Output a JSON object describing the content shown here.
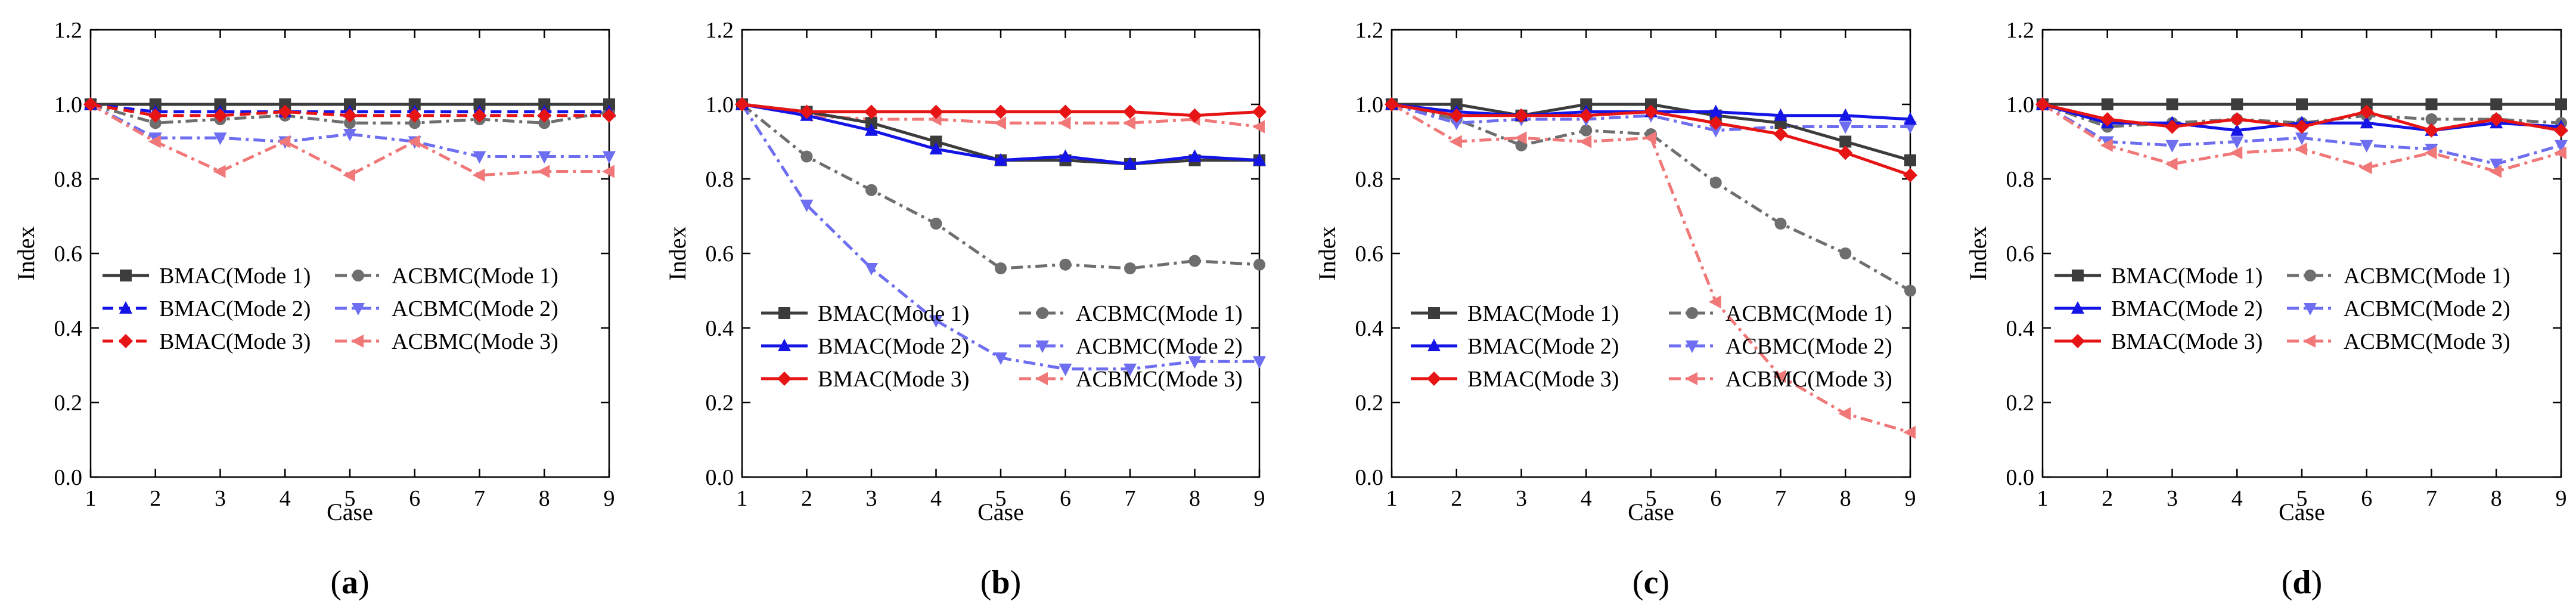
{
  "figure": {
    "xlabel": "Case",
    "ylabel": "Index",
    "panel_label_format": {
      "open": "(",
      "close": ")"
    }
  },
  "style": {
    "colors": {
      "Mode 1": "#3c3c3c",
      "Mode 2": "#1414e6",
      "Mode 3": "#e61414",
      "ACBMC Mode 1": "#6e6e6e",
      "ACBMC Mode 2": "#6e6ef0",
      "ACBMC Mode 3": "#f07878"
    }
  },
  "chart_data": [
    {
      "type": "line",
      "panel": "a",
      "xlabel": "Case",
      "ylabel": "Index",
      "xlim": [
        1,
        9
      ],
      "ylim": [
        0,
        1.2
      ],
      "x": [
        1,
        2,
        3,
        4,
        5,
        6,
        7,
        8,
        9
      ],
      "xticks": [
        "1",
        "2",
        "3",
        "4",
        "5",
        "6",
        "7",
        "8",
        "9"
      ],
      "yticks": [
        "0.0",
        "0.2",
        "0.4",
        "0.6",
        "0.8",
        "1.0",
        "1.2"
      ],
      "legend_position": "lower-center",
      "series": [
        {
          "name": "BMAC(Mode 1)",
          "values": [
            1.0,
            1.0,
            1.0,
            1.0,
            1.0,
            1.0,
            1.0,
            1.0,
            1.0
          ],
          "color": "Mode 1",
          "dash": "solid",
          "marker": "square"
        },
        {
          "name": "BMAC(Mode 2)",
          "values": [
            1.0,
            0.98,
            0.98,
            0.98,
            0.98,
            0.98,
            0.98,
            0.98,
            0.98
          ],
          "color": "Mode 2",
          "dash": "dash",
          "marker": "triangle-up"
        },
        {
          "name": "BMAC(Mode 3)",
          "values": [
            1.0,
            0.97,
            0.97,
            0.98,
            0.97,
            0.97,
            0.97,
            0.97,
            0.97
          ],
          "color": "Mode 3",
          "dash": "dash",
          "marker": "diamond"
        },
        {
          "name": "ACBMC(Mode 1)",
          "values": [
            1.0,
            0.95,
            0.96,
            0.97,
            0.95,
            0.95,
            0.96,
            0.95,
            0.98
          ],
          "color": "ACBMC Mode 1",
          "dash": "dashdot",
          "marker": "circle"
        },
        {
          "name": "ACBMC(Mode 2)",
          "values": [
            1.0,
            0.91,
            0.91,
            0.9,
            0.92,
            0.9,
            0.86,
            0.86,
            0.86
          ],
          "color": "ACBMC Mode 2",
          "dash": "dashdot",
          "marker": "triangle-down"
        },
        {
          "name": "ACBMC(Mode 3)",
          "values": [
            1.0,
            0.9,
            0.82,
            0.9,
            0.81,
            0.9,
            0.81,
            0.82,
            0.82
          ],
          "color": "ACBMC Mode 3",
          "dash": "dashdot",
          "marker": "triangle-left"
        }
      ]
    },
    {
      "type": "line",
      "panel": "b",
      "xlabel": "Case",
      "ylabel": "Index",
      "xlim": [
        1,
        9
      ],
      "ylim": [
        0,
        1.2
      ],
      "x": [
        1,
        2,
        3,
        4,
        5,
        6,
        7,
        8,
        9
      ],
      "xticks": [
        "1",
        "2",
        "3",
        "4",
        "5",
        "6",
        "7",
        "8",
        "9"
      ],
      "yticks": [
        "0.0",
        "0.2",
        "0.4",
        "0.6",
        "0.8",
        "1.0",
        "1.2"
      ],
      "legend_position": "lower-right",
      "series": [
        {
          "name": "BMAC(Mode 1)",
          "values": [
            1.0,
            0.98,
            0.95,
            0.9,
            0.85,
            0.85,
            0.84,
            0.85,
            0.85
          ],
          "color": "Mode 1",
          "dash": "solid",
          "marker": "square"
        },
        {
          "name": "BMAC(Mode 2)",
          "values": [
            1.0,
            0.97,
            0.93,
            0.88,
            0.85,
            0.86,
            0.84,
            0.86,
            0.85
          ],
          "color": "Mode 2",
          "dash": "solid",
          "marker": "triangle-up"
        },
        {
          "name": "BMAC(Mode 3)",
          "values": [
            1.0,
            0.98,
            0.98,
            0.98,
            0.98,
            0.98,
            0.98,
            0.97,
            0.98
          ],
          "color": "Mode 3",
          "dash": "solid",
          "marker": "diamond"
        },
        {
          "name": "ACBMC(Mode 1)",
          "values": [
            1.0,
            0.86,
            0.77,
            0.68,
            0.56,
            0.57,
            0.56,
            0.58,
            0.57
          ],
          "color": "ACBMC Mode 1",
          "dash": "dashdot",
          "marker": "circle"
        },
        {
          "name": "ACBMC(Mode 2)",
          "values": [
            1.0,
            0.73,
            0.56,
            0.42,
            0.32,
            0.29,
            0.29,
            0.31,
            0.31
          ],
          "color": "ACBMC Mode 2",
          "dash": "dashdot",
          "marker": "triangle-down"
        },
        {
          "name": "ACBMC(Mode 3)",
          "values": [
            1.0,
            0.97,
            0.96,
            0.96,
            0.95,
            0.95,
            0.95,
            0.96,
            0.94
          ],
          "color": "ACBMC Mode 3",
          "dash": "dashdot",
          "marker": "triangle-left"
        }
      ]
    },
    {
      "type": "line",
      "panel": "c",
      "xlabel": "Case",
      "ylabel": "Index",
      "xlim": [
        1,
        9
      ],
      "ylim": [
        0,
        1.2
      ],
      "x": [
        1,
        2,
        3,
        4,
        5,
        6,
        7,
        8,
        9
      ],
      "xticks": [
        "1",
        "2",
        "3",
        "4",
        "5",
        "6",
        "7",
        "8",
        "9"
      ],
      "yticks": [
        "0.0",
        "0.2",
        "0.4",
        "0.6",
        "0.8",
        "1.0",
        "1.2"
      ],
      "legend_position": "lower-right",
      "series": [
        {
          "name": "BMAC(Mode 1)",
          "values": [
            1.0,
            1.0,
            0.97,
            1.0,
            1.0,
            0.97,
            0.95,
            0.9,
            0.85
          ],
          "color": "Mode 1",
          "dash": "solid",
          "marker": "square"
        },
        {
          "name": "BMAC(Mode 2)",
          "values": [
            1.0,
            0.98,
            0.97,
            0.98,
            0.98,
            0.98,
            0.97,
            0.97,
            0.96
          ],
          "color": "Mode 2",
          "dash": "solid",
          "marker": "triangle-up"
        },
        {
          "name": "BMAC(Mode 3)",
          "values": [
            1.0,
            0.97,
            0.97,
            0.97,
            0.98,
            0.95,
            0.92,
            0.87,
            0.81
          ],
          "color": "Mode 3",
          "dash": "solid",
          "marker": "diamond"
        },
        {
          "name": "ACBMC(Mode 1)",
          "values": [
            1.0,
            0.96,
            0.89,
            0.93,
            0.92,
            0.79,
            0.68,
            0.6,
            0.5
          ],
          "color": "ACBMC Mode 1",
          "dash": "dashdot",
          "marker": "circle"
        },
        {
          "name": "ACBMC(Mode 2)",
          "values": [
            1.0,
            0.95,
            0.96,
            0.96,
            0.97,
            0.93,
            0.94,
            0.94,
            0.94
          ],
          "color": "ACBMC Mode 2",
          "dash": "dashdot",
          "marker": "triangle-down"
        },
        {
          "name": "ACBMC(Mode 3)",
          "values": [
            1.0,
            0.9,
            0.91,
            0.9,
            0.91,
            0.47,
            0.27,
            0.17,
            0.12
          ],
          "color": "ACBMC Mode 3",
          "dash": "dashdot",
          "marker": "triangle-left"
        }
      ]
    },
    {
      "type": "line",
      "panel": "d",
      "xlabel": "Case",
      "ylabel": "Index",
      "xlim": [
        1,
        9
      ],
      "ylim": [
        0,
        1.2
      ],
      "x": [
        1,
        2,
        3,
        4,
        5,
        6,
        7,
        8,
        9
      ],
      "xticks": [
        "1",
        "2",
        "3",
        "4",
        "5",
        "6",
        "7",
        "8",
        "9"
      ],
      "yticks": [
        "0.0",
        "0.2",
        "0.4",
        "0.6",
        "0.8",
        "1.0",
        "1.2"
      ],
      "legend_position": "lower-center",
      "series": [
        {
          "name": "BMAC(Mode 1)",
          "values": [
            1.0,
            1.0,
            1.0,
            1.0,
            1.0,
            1.0,
            1.0,
            1.0,
            1.0
          ],
          "color": "Mode 1",
          "dash": "solid",
          "marker": "square"
        },
        {
          "name": "BMAC(Mode 2)",
          "values": [
            1.0,
            0.95,
            0.95,
            0.93,
            0.95,
            0.95,
            0.93,
            0.95,
            0.94
          ],
          "color": "Mode 2",
          "dash": "solid",
          "marker": "triangle-up"
        },
        {
          "name": "BMAC(Mode 3)",
          "values": [
            1.0,
            0.96,
            0.94,
            0.96,
            0.94,
            0.98,
            0.93,
            0.96,
            0.93
          ],
          "color": "Mode 3",
          "dash": "solid",
          "marker": "diamond"
        },
        {
          "name": "ACBMC(Mode 1)",
          "values": [
            1.0,
            0.94,
            0.95,
            0.96,
            0.95,
            0.97,
            0.96,
            0.96,
            0.95
          ],
          "color": "ACBMC Mode 1",
          "dash": "dashdot",
          "marker": "circle"
        },
        {
          "name": "ACBMC(Mode 2)",
          "values": [
            1.0,
            0.9,
            0.89,
            0.9,
            0.91,
            0.89,
            0.88,
            0.84,
            0.89
          ],
          "color": "ACBMC Mode 2",
          "dash": "dashdot",
          "marker": "triangle-down"
        },
        {
          "name": "ACBMC(Mode 3)",
          "values": [
            1.0,
            0.89,
            0.84,
            0.87,
            0.88,
            0.83,
            0.87,
            0.82,
            0.87
          ],
          "color": "ACBMC Mode 3",
          "dash": "dashdot",
          "marker": "triangle-left"
        }
      ]
    }
  ]
}
